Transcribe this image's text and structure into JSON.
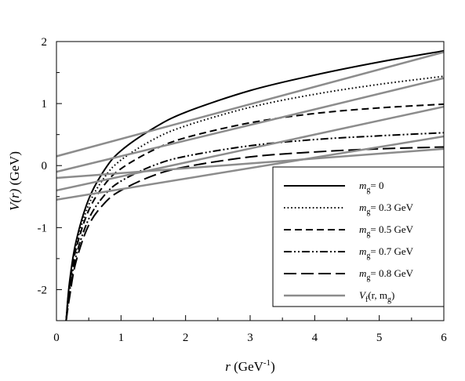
{
  "chart_data": {
    "type": "line",
    "xlabel": {
      "main": "r",
      "unit": " (GeV",
      "exp": "-1",
      "close": ")"
    },
    "ylabel": {
      "main": "V(r)",
      "unit": "  (GeV)"
    },
    "xlim": [
      0,
      6
    ],
    "ylim": [
      -2.5,
      2
    ],
    "x_ticks": [
      0,
      1,
      2,
      3,
      4,
      5,
      6
    ],
    "y_ticks": [
      -2,
      -1,
      0,
      1,
      2
    ],
    "x_tick_labels": [
      "0",
      "1",
      "2",
      "3",
      "4",
      "5",
      "6"
    ],
    "y_tick_labels": [
      "-2",
      "-1",
      "0",
      "1",
      "2"
    ],
    "grid": false,
    "legend_position": "bottom-right",
    "series": [
      {
        "legend": {
          "sym": "m",
          "sub": "g",
          "rest": "= 0"
        },
        "style": "solid",
        "color": "#000000",
        "x": [
          0.15,
          0.2,
          0.3,
          0.5,
          0.75,
          1,
          1.5,
          2,
          3,
          4,
          5,
          6
        ],
        "y": [
          -2.5,
          -1.9,
          -1.24,
          -0.54,
          -0.06,
          0.24,
          0.6,
          0.86,
          1.21,
          1.46,
          1.67,
          1.85
        ]
      },
      {
        "legend": {
          "sym": "m",
          "sub": "g",
          "rest": "= 0.3 GeV"
        },
        "style": "dotted",
        "color": "#000000",
        "x": [
          0.15,
          0.2,
          0.3,
          0.5,
          0.75,
          1,
          1.5,
          2,
          3,
          4,
          5,
          6
        ],
        "y": [
          -2.5,
          -1.93,
          -1.3,
          -0.63,
          -0.18,
          0.09,
          0.42,
          0.64,
          0.94,
          1.15,
          1.31,
          1.44
        ]
      },
      {
        "legend": {
          "sym": "m",
          "sub": "g",
          "rest": "= 0.5 GeV"
        },
        "style": "dashed",
        "color": "#000000",
        "x": [
          0.15,
          0.2,
          0.3,
          0.5,
          0.75,
          1,
          1.5,
          2,
          3,
          4,
          5,
          6
        ],
        "y": [
          -2.5,
          -1.97,
          -1.36,
          -0.72,
          -0.3,
          -0.05,
          0.25,
          0.45,
          0.69,
          0.84,
          0.93,
          0.99
        ]
      },
      {
        "legend": {
          "sym": "m",
          "sub": "g",
          "rest": "= 0.7 GeV"
        },
        "style": "dashdotdot",
        "color": "#000000",
        "x": [
          0.15,
          0.2,
          0.3,
          0.5,
          0.75,
          1,
          1.5,
          2,
          3,
          4,
          5,
          6
        ],
        "y": [
          -2.5,
          -2.06,
          -1.47,
          -0.86,
          -0.47,
          -0.25,
          0.0,
          0.15,
          0.32,
          0.42,
          0.48,
          0.53
        ]
      },
      {
        "legend": {
          "sym": "m",
          "sub": "g",
          "rest": "= 0.8 GeV"
        },
        "style": "longdash",
        "color": "#000000",
        "x": [
          0.15,
          0.2,
          0.3,
          0.5,
          0.75,
          1,
          1.5,
          2,
          3,
          4,
          5,
          6
        ],
        "y": [
          -2.5,
          -2.14,
          -1.56,
          -0.96,
          -0.6,
          -0.4,
          -0.16,
          -0.02,
          0.14,
          0.22,
          0.27,
          0.3
        ]
      },
      {
        "legend": {
          "sym": "V",
          "sub": "f",
          "rest": "(r, m",
          "sub2": "g",
          "rest2": ")"
        },
        "style": "solid-gray",
        "color": "#8c8c8c",
        "lines": [
          {
            "x": [
              0,
              6
            ],
            "y": [
              0.15,
              1.83
            ]
          },
          {
            "x": [
              0,
              6
            ],
            "y": [
              -0.1,
              1.41
            ]
          },
          {
            "x": [
              0,
              6
            ],
            "y": [
              -0.4,
              0.95
            ]
          },
          {
            "x": [
              0,
              6
            ],
            "y": [
              -0.55,
              0.47
            ]
          },
          {
            "x": [
              0,
              6
            ],
            "y": [
              -0.2,
              0.27
            ]
          }
        ]
      }
    ]
  }
}
